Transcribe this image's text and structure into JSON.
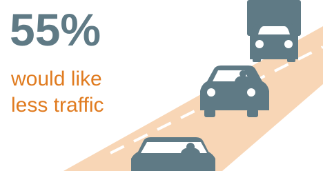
{
  "stat": {
    "value": "55%",
    "caption_lines": [
      "would like",
      "less traffic"
    ]
  }
}
